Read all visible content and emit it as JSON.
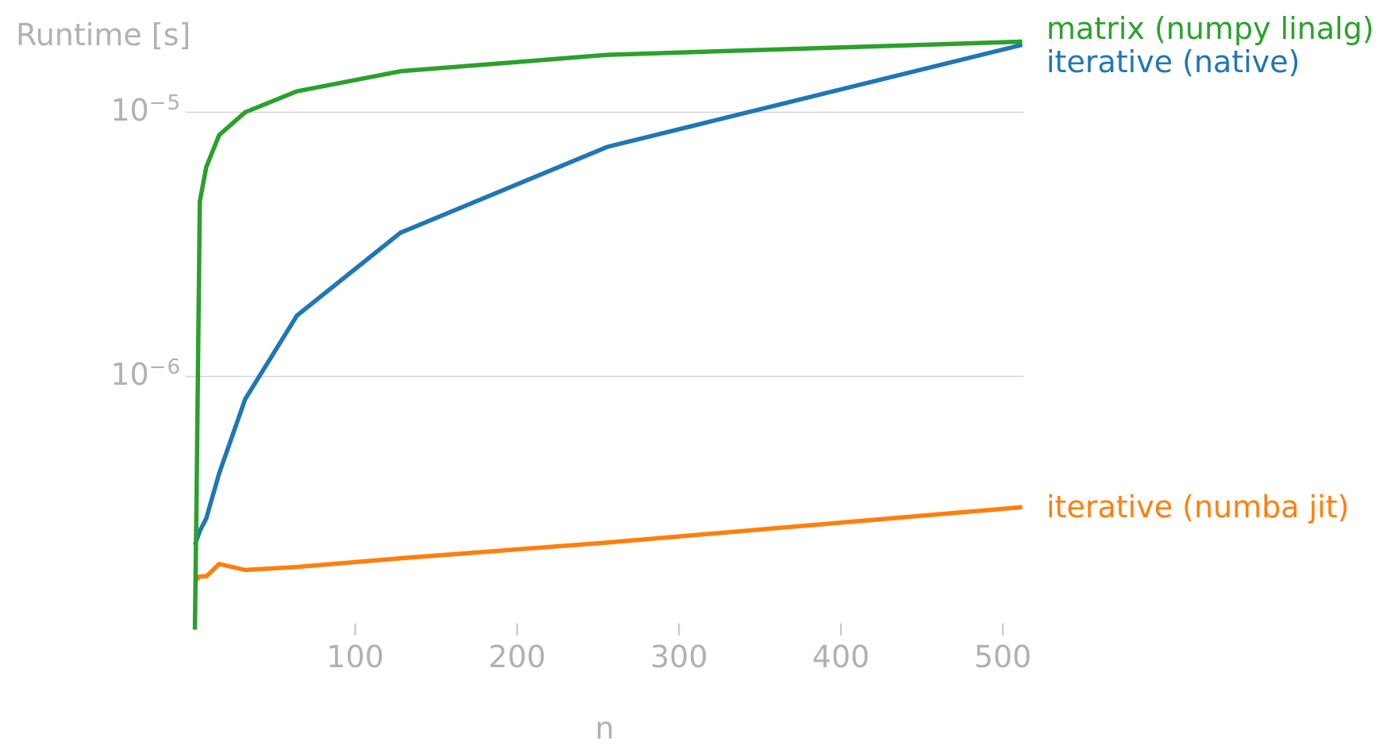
{
  "title": "Runtime [s]",
  "xlabel": "n",
  "chart_data": {
    "type": "line",
    "title": "Runtime [s]",
    "xlabel": "n",
    "ylabel": "Runtime [s]",
    "x_scale": "linear",
    "y_scale": "log",
    "grid": "horizontal-only",
    "legend_position": "right-of-line-ends",
    "x": [
      1,
      2,
      4,
      8,
      16,
      32,
      64,
      128,
      256,
      512
    ],
    "x_ticks": [
      100,
      200,
      300,
      400,
      500
    ],
    "y_ticks": [
      {
        "base": "10",
        "exp": "−5",
        "value": 1e-05
      },
      {
        "base": "10",
        "exp": "−6",
        "value": 1e-06
      }
    ],
    "xlim": [
      0,
      512
    ],
    "series": [
      {
        "name": "iterative (native)",
        "color": "#1f77b4",
        "values": [
          2.3e-07,
          2.4e-07,
          2.6e-07,
          2.9e-07,
          4.3e-07,
          8.2e-07,
          1.7e-06,
          3.5e-06,
          7.4e-06,
          1.8e-05
        ]
      },
      {
        "name": "iterative (numba jit)",
        "color": "#ff7f0e",
        "values": [
          1.7e-07,
          1.7e-07,
          1.75e-07,
          1.75e-07,
          1.95e-07,
          1.85e-07,
          1.9e-07,
          2.05e-07,
          2.35e-07,
          3.2e-07
        ]
      },
      {
        "name": "matrix (numpy linalg)",
        "color": "#2ca02c",
        "values": [
          1.1e-07,
          3.5e-07,
          4.6e-06,
          6.2e-06,
          8.2e-06,
          1e-05,
          1.2e-05,
          1.43e-05,
          1.65e-05,
          1.85e-05
        ]
      }
    ]
  }
}
